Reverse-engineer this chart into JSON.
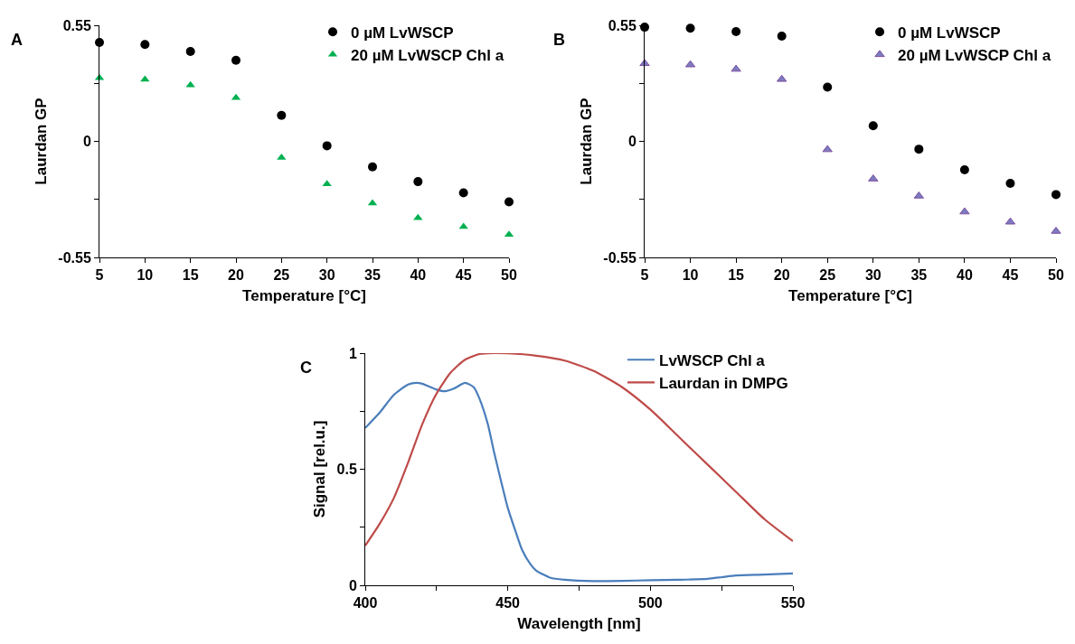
{
  "chart_data": [
    {
      "type": "scatter",
      "title": "A",
      "xlabel": "Temperature [°C]",
      "ylabel": "Laurdan GP",
      "x": [
        5,
        10,
        15,
        20,
        25,
        30,
        35,
        40,
        45,
        50
      ],
      "series": [
        {
          "name": "0 µM LvWSCP",
          "color": "#000000",
          "marker": "circle",
          "values": [
            0.469,
            0.459,
            0.426,
            0.384,
            0.123,
            -0.021,
            -0.121,
            -0.191,
            -0.244,
            -0.287
          ]
        },
        {
          "name": "20 µM LvWSCP Chl a",
          "color": "#00b050",
          "marker": "triangle",
          "values": [
            0.301,
            0.293,
            0.266,
            0.207,
            -0.077,
            -0.202,
            -0.293,
            -0.363,
            -0.405,
            -0.442
          ]
        }
      ],
      "xlim": [
        5,
        50
      ],
      "xticks": [
        5,
        10,
        15,
        20,
        25,
        30,
        35,
        40,
        45,
        50
      ],
      "ylim": [
        -0.55,
        0.55
      ],
      "yticks": [
        -0.55,
        {
          "value": -0.275,
          "label": null
        },
        0,
        {
          "value": 0.275,
          "label": null
        },
        0.55
      ],
      "grid": false,
      "legend": "top right"
    },
    {
      "type": "scatter",
      "title": "B",
      "xlabel": "Temperature [°C]",
      "ylabel": "Laurdan GP",
      "x": [
        5,
        10,
        15,
        20,
        25,
        30,
        35,
        40,
        45,
        50
      ],
      "series": [
        {
          "name": "0 µM LvWSCP",
          "color": "#000000",
          "marker": "circle",
          "values": [
            0.541,
            0.536,
            0.52,
            0.499,
            0.257,
            0.074,
            -0.037,
            -0.135,
            -0.199,
            -0.252
          ]
        },
        {
          "name": "20 µM LvWSCP Chl a",
          "color": "#7b7bc0",
          "marker": "triangle",
          "values": [
            0.369,
            0.363,
            0.342,
            0.294,
            -0.039,
            -0.178,
            -0.259,
            -0.334,
            -0.382,
            -0.426
          ]
        }
      ],
      "xlim": [
        5,
        50
      ],
      "xticks": [
        5,
        10,
        15,
        20,
        25,
        30,
        35,
        40,
        45,
        50
      ],
      "ylim": [
        -0.55,
        0.55
      ],
      "yticks": [
        -0.55,
        {
          "value": -0.275,
          "label": null
        },
        0,
        {
          "value": 0.275,
          "label": null
        },
        0.55
      ],
      "grid": false,
      "legend": "top right"
    },
    {
      "type": "line",
      "title": "C",
      "xlabel": "Wavelength [nm]",
      "ylabel": "Signal [rel.u.]",
      "series": [
        {
          "name": "LvWSCP Chl a",
          "color": "#4a7ebb",
          "x": [
            400,
            405,
            410,
            415,
            418,
            420,
            425,
            428,
            431,
            435,
            438,
            440,
            443,
            445,
            448,
            450,
            453,
            455,
            458,
            460,
            465,
            470,
            480,
            490,
            500,
            510,
            520,
            525,
            530,
            540,
            550
          ],
          "values": [
            0.678,
            0.743,
            0.82,
            0.865,
            0.872,
            0.868,
            0.843,
            0.836,
            0.847,
            0.872,
            0.854,
            0.806,
            0.694,
            0.583,
            0.43,
            0.333,
            0.222,
            0.153,
            0.09,
            0.063,
            0.032,
            0.024,
            0.018,
            0.019,
            0.022,
            0.024,
            0.028,
            0.035,
            0.042,
            0.046,
            0.051
          ]
        },
        {
          "name": "Laurdan in DMPG",
          "color": "#be4b48",
          "x": [
            400,
            405,
            410,
            415,
            420,
            425,
            430,
            435,
            440,
            445,
            450,
            460,
            470,
            480,
            490,
            500,
            510,
            520,
            530,
            540,
            550
          ],
          "values": [
            0.171,
            0.264,
            0.375,
            0.528,
            0.694,
            0.826,
            0.917,
            0.972,
            0.996,
            1.0,
            0.999,
            0.989,
            0.968,
            0.924,
            0.854,
            0.757,
            0.639,
            0.521,
            0.403,
            0.285,
            0.19
          ]
        }
      ],
      "xlim": [
        400,
        550
      ],
      "xticks": [
        400,
        {
          "value": 425,
          "label": null
        },
        450,
        {
          "value": 475,
          "label": null
        },
        500,
        {
          "value": 525,
          "label": null
        },
        550
      ],
      "ylim": [
        0,
        1
      ],
      "yticks": [
        0,
        {
          "value": 0.25,
          "label": null
        },
        0.5,
        {
          "value": 0.75,
          "label": null
        },
        1
      ],
      "grid": false,
      "legend": "top right",
      "marker": "none",
      "line_style": "solid"
    }
  ]
}
